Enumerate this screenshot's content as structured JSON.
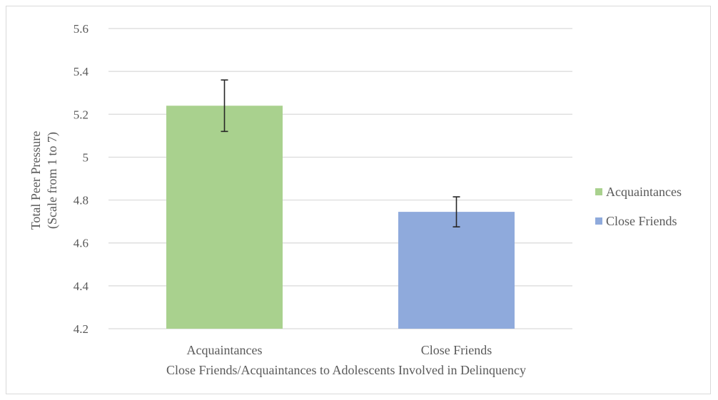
{
  "chart_data": {
    "type": "bar",
    "categories": [
      "Acquaintances",
      "Close Friends"
    ],
    "values": [
      5.24,
      4.745
    ],
    "error_bars": [
      {
        "low": 5.12,
        "high": 5.36
      },
      {
        "low": 4.675,
        "high": 4.815
      }
    ],
    "colors": [
      "#a9d18e",
      "#8faadc"
    ],
    "xlabel": "Close Friends/Acquaintances to Adolescents Involved in Delinquency",
    "ylabel_line1": "Total Peer Pressure",
    "ylabel_line2": "(Scale from 1 to 7)",
    "ylim": [
      4.2,
      5.6
    ],
    "yticks": [
      "4.2",
      "4.4",
      "4.6",
      "4.8",
      "5",
      "5.2",
      "5.4",
      "5.6"
    ],
    "ytick_values": [
      4.2,
      4.4,
      4.6,
      4.8,
      5.0,
      5.2,
      5.4,
      5.6
    ],
    "grid": true,
    "legend": {
      "position": "right",
      "entries": [
        "Acquaintances",
        "Close Friends"
      ]
    }
  }
}
